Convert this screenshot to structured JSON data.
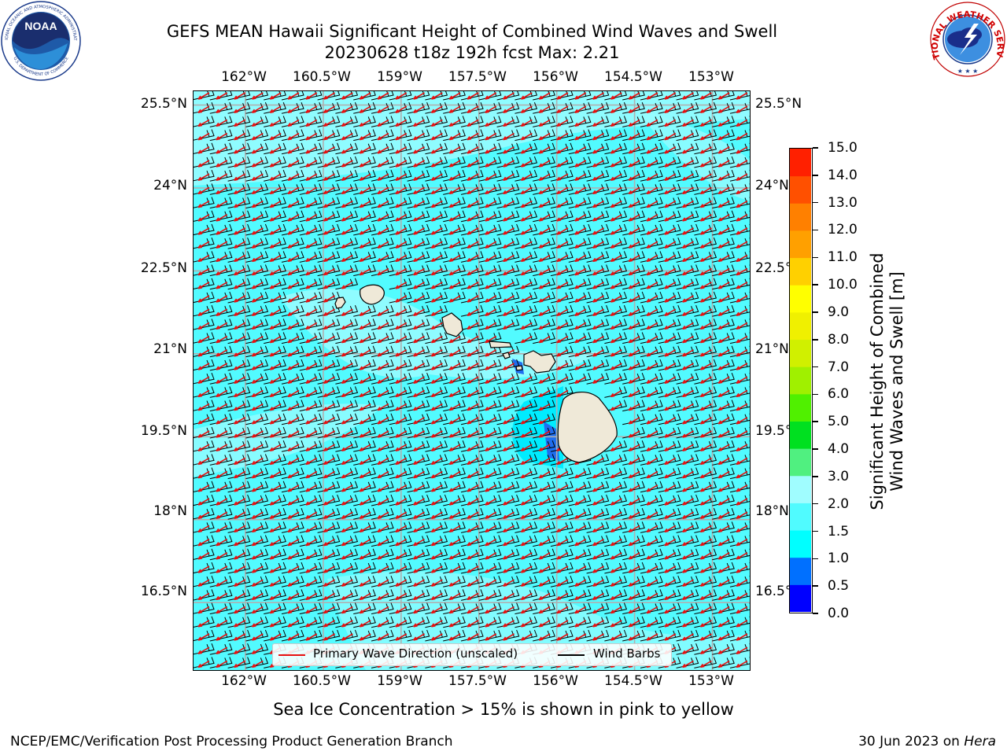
{
  "title": {
    "line1": "GEFS MEAN Hawaii Significant Height of Combined Wind Waves and Swell",
    "line2": "20230628 t18z 192h fcst   Max: 2.21"
  },
  "map": {
    "lon_labels": [
      "162°W",
      "160.5°W",
      "159°W",
      "157.5°W",
      "156°W",
      "154.5°W",
      "153°W"
    ],
    "lon_values": [
      -162,
      -160.5,
      -159,
      -157.5,
      -156,
      -154.5,
      -153
    ],
    "lat_labels": [
      "25.5°N",
      "24°N",
      "22.5°N",
      "21°N",
      "19.5°N",
      "18°N",
      "16.5°N"
    ],
    "lat_values": [
      25.5,
      24,
      22.5,
      21,
      19.5,
      18,
      16.5
    ],
    "lon_range": [
      -163,
      -152.25
    ],
    "lat_range": [
      15.25,
      25.75
    ],
    "colors": {
      "ocean": "#52fbff",
      "ocean_light": "#96fcff",
      "land": "#efe9d8",
      "wave_arrow": "#e81010",
      "wind_barb": "#000000",
      "gridline": "#b0b0b0"
    },
    "wind_direction": "from east-northeast (trade winds)",
    "wave_direction": "toward west-southwest"
  },
  "legend": {
    "wave_label": "Primary Wave Direction (unscaled)",
    "barb_label": "Wind Barbs"
  },
  "colorbar": {
    "label_line1": "Significant Height of Combined",
    "label_line2": "Wind Waves and Swell [m]",
    "ticks": [
      "0.0",
      "0.5",
      "1.0",
      "1.5",
      "2.0",
      "3.0",
      "4.0",
      "5.0",
      "6.0",
      "7.0",
      "8.0",
      "9.0",
      "10.0",
      "11.0",
      "12.0",
      "13.0",
      "14.0",
      "15.0"
    ],
    "colors": [
      "#0000ff",
      "#0070ff",
      "#00ffff",
      "#50fbff",
      "#a0fdff",
      "#50f080",
      "#00e020",
      "#50f000",
      "#a0f000",
      "#d0f000",
      "#f0f000",
      "#ffff00",
      "#ffd000",
      "#ffa000",
      "#ff8000",
      "#ff5000",
      "#ff2000"
    ]
  },
  "sea_ice_note": "Sea Ice Concentration > 15% is shown in pink to yellow",
  "footer": {
    "left": "NCEP/EMC/Verification Post Processing Product Generation Branch",
    "date": "30 Jun 2023 on ",
    "host": "Hera"
  },
  "logos": {
    "noaa_text": "NOAA",
    "noaa_ring_top": "NATIONAL OCEANIC AND ATMOSPHERIC ADMINISTRATION",
    "noaa_ring_bottom": "U.S. DEPARTMENT OF COMMERCE",
    "nws_ring": "NATIONAL WEATHER SERVICE"
  }
}
